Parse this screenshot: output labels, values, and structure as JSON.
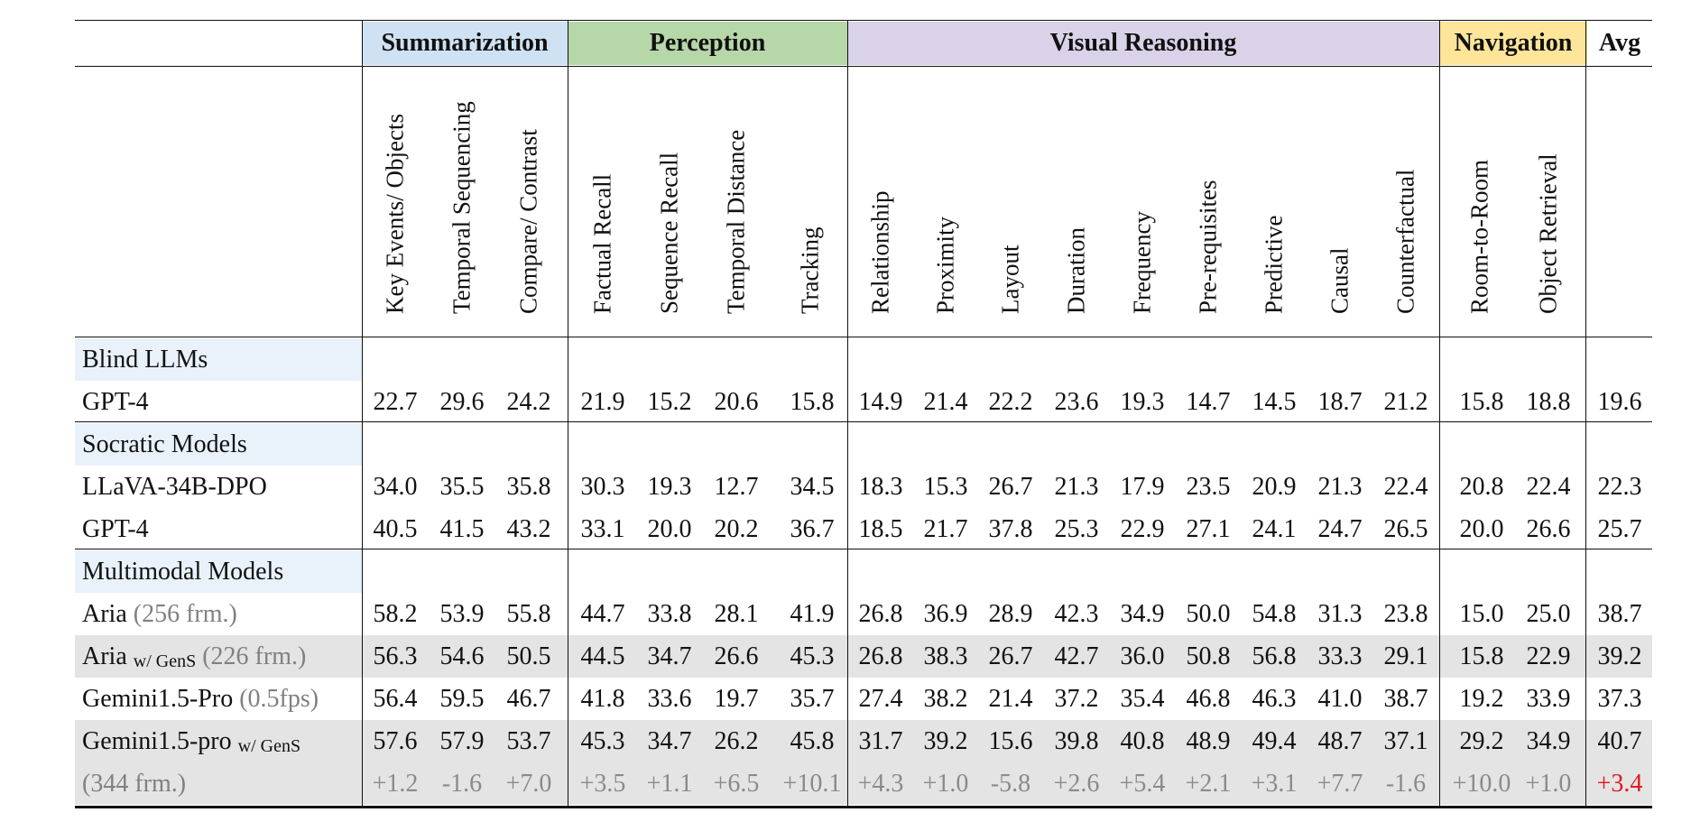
{
  "categories": [
    {
      "label": "Summarization",
      "color": "#cfe2f3"
    },
    {
      "label": "Perception",
      "color": "#b6d7a8"
    },
    {
      "label": "Visual Reasoning",
      "color": "#d9d2e9"
    },
    {
      "label": "Navigation",
      "color": "#ffe599"
    },
    {
      "label": "Avg",
      "color": "#ffffff"
    }
  ],
  "columns": [
    "Key Events/ Objects",
    "Temporal Sequencing",
    "Compare/ Contrast",
    "Factual Recall",
    "Sequence Recall",
    "Temporal Distance",
    "Tracking",
    "Relationship",
    "Proximity",
    "Layout",
    "Duration",
    "Frequency",
    "Pre-requisites",
    "Predictive",
    "Causal",
    "Counterfactual",
    "Room-to-Room",
    "Object Retrieval"
  ],
  "groups": [
    {
      "name": "Blind LLMs"
    },
    {
      "name": "Socratic Models"
    },
    {
      "name": "Multimodal Models"
    }
  ],
  "rows": [
    {
      "model": "GPT-4",
      "values": [
        "22.7",
        "29.6",
        "24.2",
        "21.9",
        "15.2",
        "20.6",
        "15.8",
        "14.9",
        "21.4",
        "22.2",
        "23.6",
        "19.3",
        "14.7",
        "14.5",
        "18.7",
        "21.2",
        "15.8",
        "18.8",
        "19.6"
      ]
    },
    {
      "model": "LLaVA-34B-DPO",
      "values": [
        "34.0",
        "35.5",
        "35.8",
        "30.3",
        "19.3",
        "12.7",
        "34.5",
        "18.3",
        "15.3",
        "26.7",
        "21.3",
        "17.9",
        "23.5",
        "20.9",
        "21.3",
        "22.4",
        "20.8",
        "22.4",
        "22.3"
      ]
    },
    {
      "model": "GPT-4",
      "values": [
        "40.5",
        "41.5",
        "43.2",
        "33.1",
        "20.0",
        "20.2",
        "36.7",
        "18.5",
        "21.7",
        "37.8",
        "25.3",
        "22.9",
        "27.1",
        "24.1",
        "24.7",
        "26.5",
        "20.0",
        "26.6",
        "25.7"
      ]
    },
    {
      "model": "Aria",
      "note": "(256 frm.)",
      "values": [
        "58.2",
        "53.9",
        "55.8",
        "44.7",
        "33.8",
        "28.1",
        "41.9",
        "26.8",
        "36.9",
        "28.9",
        "42.3",
        "34.9",
        "50.0",
        "54.8",
        "31.3",
        "23.8",
        "15.0",
        "25.0",
        "38.7"
      ]
    },
    {
      "model": "Aria",
      "sub": "w/ GenS",
      "note": "(226 frm.)",
      "values": [
        "56.3",
        "54.6",
        "50.5",
        "44.5",
        "34.7",
        "26.6",
        "45.3",
        "26.8",
        "38.3",
        "26.7",
        "42.7",
        "36.0",
        "50.8",
        "56.8",
        "33.3",
        "29.1",
        "15.8",
        "22.9",
        "39.2"
      ]
    },
    {
      "model": "Gemini1.5-Pro",
      "note": "(0.5fps)",
      "values": [
        "56.4",
        "59.5",
        "46.7",
        "41.8",
        "33.6",
        "19.7",
        "35.7",
        "27.4",
        "38.2",
        "21.4",
        "37.2",
        "35.4",
        "46.8",
        "46.3",
        "41.0",
        "38.7",
        "19.2",
        "33.9",
        "37.3"
      ]
    },
    {
      "model": "Gemini1.5-pro",
      "sub": "w/ GenS",
      "values": [
        "57.6",
        "57.9",
        "53.7",
        "45.3",
        "34.7",
        "26.2",
        "45.8",
        "31.7",
        "39.2",
        "15.6",
        "39.8",
        "40.8",
        "48.9",
        "49.4",
        "48.7",
        "37.1",
        "29.2",
        "34.9",
        "40.7"
      ]
    },
    {
      "model": "(344 frm.)",
      "values": [
        "+1.2",
        "-1.6",
        "+7.0",
        "+3.5",
        "+1.1",
        "+6.5",
        "+10.1",
        "+4.3",
        "+1.0",
        "-5.8",
        "+2.6",
        "+5.4",
        "+2.1",
        "+3.1",
        "+7.7",
        "-1.6",
        "+10.0",
        "+1.0",
        "+3.4"
      ]
    }
  ]
}
